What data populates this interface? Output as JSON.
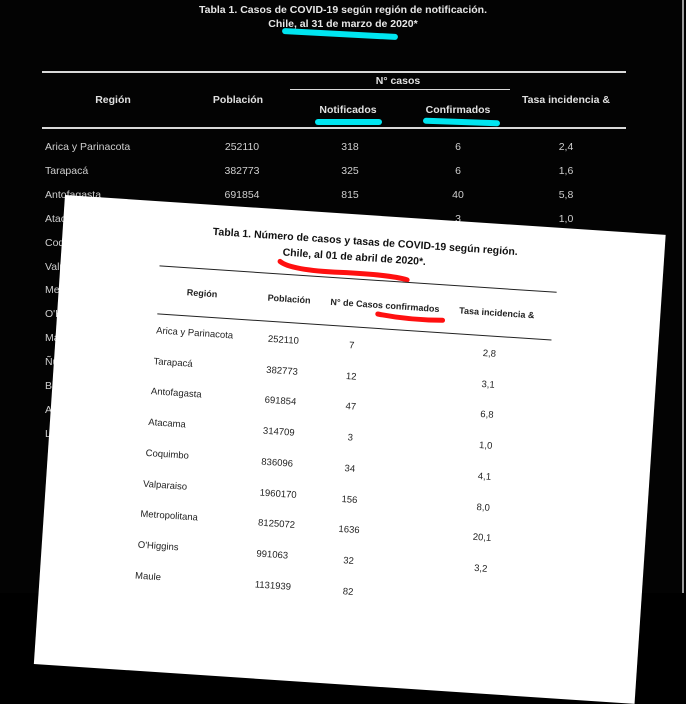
{
  "back_table": {
    "title_line1": "Tabla 1. Casos  de COVID-19 según región de notificación.",
    "title_line2": "Chile, al 31 de marzo de 2020*",
    "highlight_color": "#00e5f0",
    "headers": {
      "region": "Región",
      "population": "Población",
      "cases_group": "N° casos",
      "notified": "Notificados",
      "confirmed": "Confirmados",
      "rate": "Tasa incidencia &"
    },
    "rows": [
      {
        "region": "Arica y Parinacota",
        "population": "252110",
        "notified": "318",
        "confirmed": "6",
        "rate": "2,4"
      },
      {
        "region": "Tarapacá",
        "population": "382773",
        "notified": "325",
        "confirmed": "6",
        "rate": "1,6"
      },
      {
        "region": "Antofagasta",
        "population": "691854",
        "notified": "815",
        "confirmed": "40",
        "rate": "5,8"
      },
      {
        "region": "Atacama",
        "population": "",
        "notified": "",
        "confirmed": "3",
        "rate": "1,0"
      },
      {
        "region": "Coquimbo"
      },
      {
        "region": "Valparaíso"
      },
      {
        "region": "Metropolitana"
      },
      {
        "region": "O'Higgins"
      },
      {
        "region": "Maule"
      },
      {
        "region": "Ñuble"
      },
      {
        "region": "Biobío"
      },
      {
        "region": "Araucanía"
      },
      {
        "region": "Los Ríos"
      }
    ]
  },
  "front_table": {
    "title_line1": "Tabla 1.  Número de casos   y tasas de COVID-19 según región.",
    "title_line2": "Chile, al 01 de abril de 2020*.",
    "highlight_color": "#ff1010",
    "headers": {
      "region": "Región",
      "population": "Población",
      "confirmed": "N° de Casos confirmados",
      "rate": "Tasa incidencia &"
    },
    "rows": [
      {
        "region": "Arica y Parinacota",
        "population": "252110",
        "confirmed": "7",
        "rate": "2,8"
      },
      {
        "region": "Tarapacá",
        "population": "382773",
        "confirmed": "12",
        "rate": "3,1"
      },
      {
        "region": "Antofagasta",
        "population": "691854",
        "confirmed": "47",
        "rate": "6,8"
      },
      {
        "region": "Atacama",
        "population": "314709",
        "confirmed": "3",
        "rate": "1,0"
      },
      {
        "region": "Coquimbo",
        "population": "836096",
        "confirmed": "34",
        "rate": "4,1"
      },
      {
        "region": "Valparaiso",
        "population": "1960170",
        "confirmed": "156",
        "rate": "8,0"
      },
      {
        "region": "Metropolitana",
        "population": "8125072",
        "confirmed": "1636",
        "rate": "20,1"
      },
      {
        "region": "O'Higgins",
        "population": "991063",
        "confirmed": "32",
        "rate": "3,2"
      },
      {
        "region": "Maule",
        "population": "1131939",
        "confirmed": "82",
        "rate": ""
      }
    ]
  }
}
